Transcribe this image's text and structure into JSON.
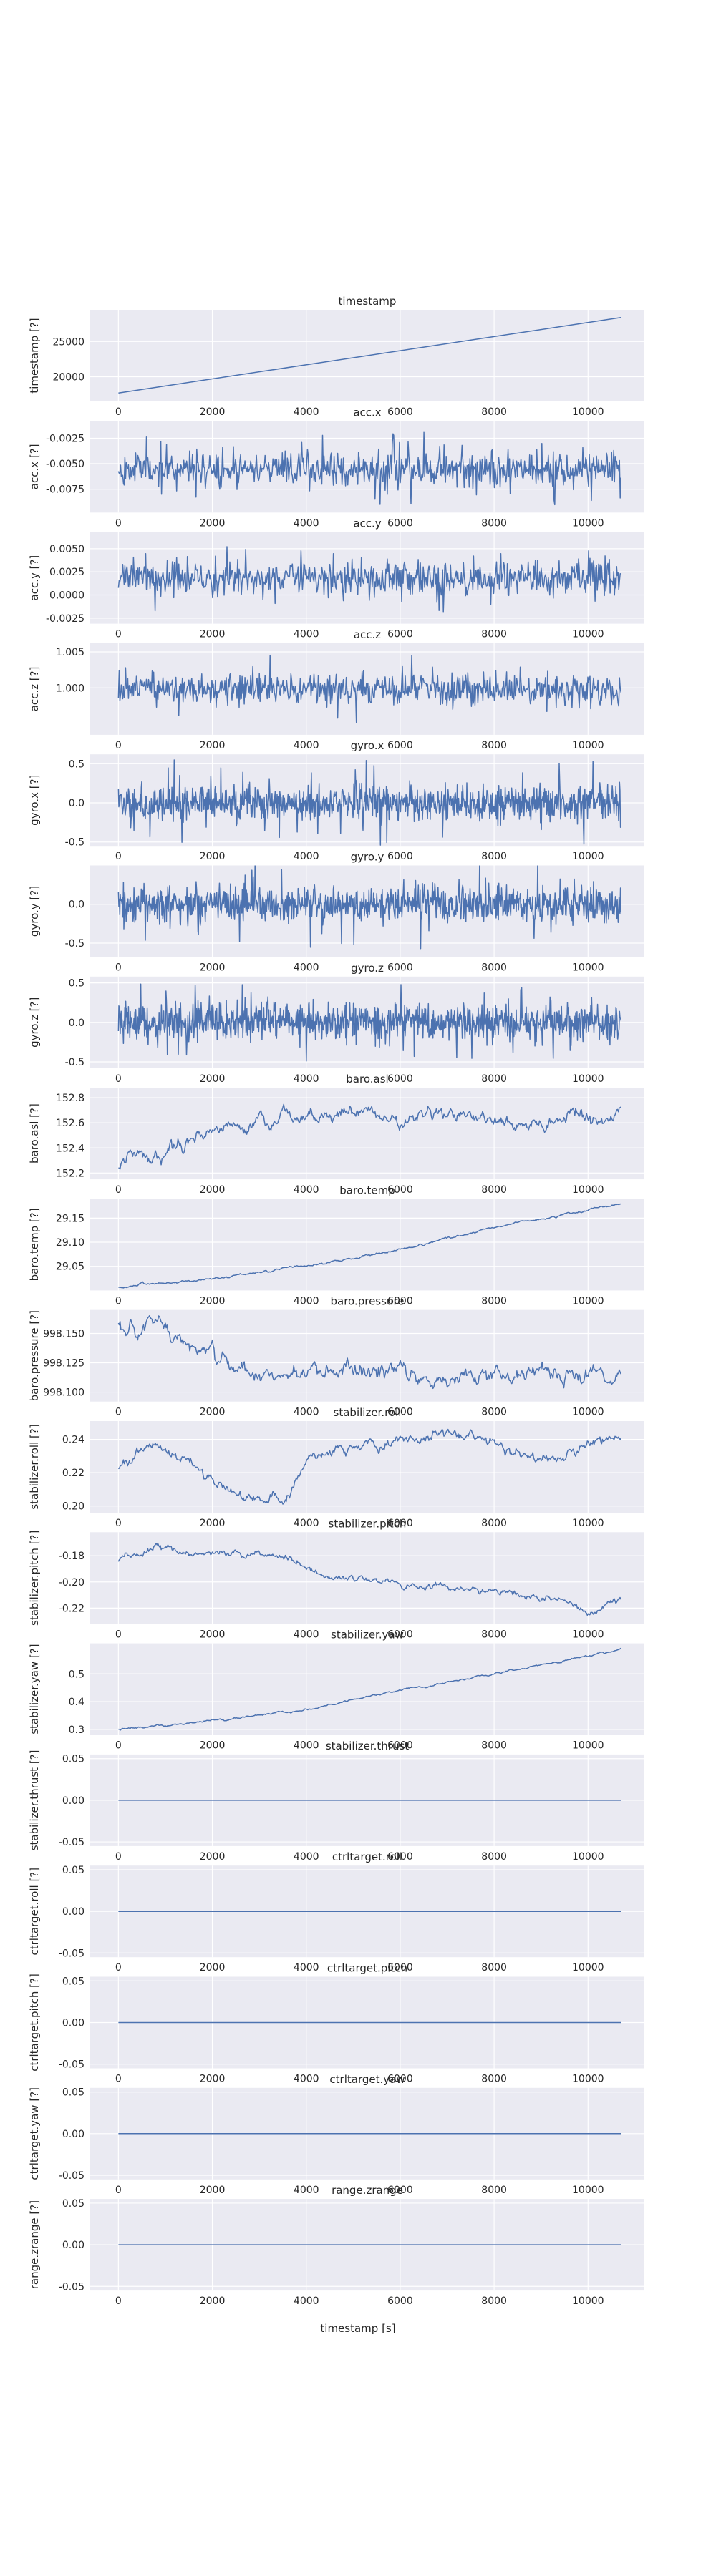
{
  "figure": {
    "shared_xlabel": "timestamp [s]",
    "background": "#ffffff",
    "axes_facecolor": "#eaeaf2",
    "grid_color": "#ffffff",
    "line_color": "#4c72b0",
    "text_color": "#262626"
  },
  "chart_data": [
    {
      "type": "line",
      "title": "timestamp",
      "ylabel": "timestamp [?]",
      "grid": true,
      "xlim": [
        -600,
        11200
      ],
      "x_ticks": [
        0,
        2000,
        4000,
        6000,
        8000,
        10000
      ],
      "ylim": [
        16500,
        29500
      ],
      "y_ticks": [
        20000,
        25000
      ],
      "y_tick_labels": [
        "20000",
        "25000"
      ],
      "series": [
        {
          "x": [
            0,
            10700
          ],
          "y": [
            17700,
            28400
          ]
        }
      ]
    },
    {
      "type": "line",
      "title": "acc.x",
      "ylabel": "acc.x [?]",
      "grid": true,
      "xlim": [
        -600,
        11200
      ],
      "x_ticks": [
        0,
        2000,
        4000,
        6000,
        8000,
        10000
      ],
      "ylim": [
        -0.0098,
        -0.0008
      ],
      "y_ticks": [
        -0.0075,
        -0.005,
        -0.0025
      ],
      "y_tick_labels": [
        "-0.0075",
        "-0.0050",
        "-0.0025"
      ],
      "series": [
        {
          "generated": {
            "kind": "noise",
            "n": 700,
            "mean": -0.0055,
            "amp": 0.0016,
            "spike": 0.0036,
            "seed": 11
          }
        }
      ]
    },
    {
      "type": "line",
      "title": "acc.y",
      "ylabel": "acc.y [?]",
      "grid": true,
      "xlim": [
        -600,
        11200
      ],
      "x_ticks": [
        0,
        2000,
        4000,
        6000,
        8000,
        10000
      ],
      "ylim": [
        -0.0031,
        0.0068
      ],
      "y_ticks": [
        -0.0025,
        0.0,
        0.0025,
        0.005
      ],
      "y_tick_labels": [
        "-0.0025",
        "0.0000",
        "0.0025",
        "0.0050"
      ],
      "series": [
        {
          "generated": {
            "kind": "noise",
            "n": 700,
            "mean": 0.0018,
            "amp": 0.0017,
            "spike": 0.0038,
            "seed": 23
          }
        }
      ]
    },
    {
      "type": "line",
      "title": "acc.z",
      "ylabel": "acc.z [?]",
      "grid": true,
      "xlim": [
        -600,
        11200
      ],
      "x_ticks": [
        0,
        2000,
        4000,
        6000,
        8000,
        10000
      ],
      "ylim": [
        0.9935,
        1.0062
      ],
      "y_ticks": [
        1.0,
        1.005
      ],
      "y_tick_labels": [
        "1.000",
        "1.005"
      ],
      "series": [
        {
          "generated": {
            "kind": "noise",
            "n": 700,
            "mean": 0.9998,
            "amp": 0.0019,
            "spike": 0.0048,
            "seed": 37
          }
        }
      ]
    },
    {
      "type": "line",
      "title": "gyro.x",
      "ylabel": "gyro.x [?]",
      "grid": true,
      "xlim": [
        -600,
        11200
      ],
      "x_ticks": [
        0,
        2000,
        4000,
        6000,
        8000,
        10000
      ],
      "ylim": [
        -0.55,
        0.62
      ],
      "y_ticks": [
        -0.5,
        0.0,
        0.5
      ],
      "y_tick_labels": [
        "-0.5",
        "0.0",
        "0.5"
      ],
      "series": [
        {
          "generated": {
            "kind": "noise",
            "n": 1100,
            "mean": 0.0,
            "amp": 0.2,
            "spike": 0.55,
            "seed": 41
          }
        }
      ]
    },
    {
      "type": "line",
      "title": "gyro.y",
      "ylabel": "gyro.y [?]",
      "grid": true,
      "xlim": [
        -600,
        11200
      ],
      "x_ticks": [
        0,
        2000,
        4000,
        6000,
        8000,
        10000
      ],
      "ylim": [
        -0.68,
        0.5
      ],
      "y_ticks": [
        -0.5,
        0.0
      ],
      "y_tick_labels": [
        "-0.5",
        "0.0"
      ],
      "series": [
        {
          "generated": {
            "kind": "noise",
            "n": 1100,
            "mean": 0.0,
            "amp": 0.2,
            "spike": 0.6,
            "seed": 53
          }
        }
      ]
    },
    {
      "type": "line",
      "title": "gyro.z",
      "ylabel": "gyro.z [?]",
      "grid": true,
      "xlim": [
        -600,
        11200
      ],
      "x_ticks": [
        0,
        2000,
        4000,
        6000,
        8000,
        10000
      ],
      "ylim": [
        -0.58,
        0.58
      ],
      "y_ticks": [
        -0.5,
        0.0,
        0.5
      ],
      "y_tick_labels": [
        "-0.5",
        "0.0",
        "0.5"
      ],
      "series": [
        {
          "generated": {
            "kind": "noise",
            "n": 1100,
            "mean": 0.0,
            "amp": 0.2,
            "spike": 0.5,
            "seed": 67
          }
        }
      ]
    },
    {
      "type": "line",
      "title": "baro.asl",
      "ylabel": "baro.asl [?]",
      "grid": true,
      "xlim": [
        -600,
        11200
      ],
      "x_ticks": [
        0,
        2000,
        4000,
        6000,
        8000,
        10000
      ],
      "ylim": [
        152.15,
        152.88
      ],
      "y_ticks": [
        152.2,
        152.4,
        152.6,
        152.8
      ],
      "y_tick_labels": [
        "152.2",
        "152.4",
        "152.6",
        "152.8"
      ],
      "series": [
        {
          "generated": {
            "kind": "walk",
            "n": 600,
            "seed": 79,
            "jitter": 0.045,
            "anchors": [
              [
                0,
                152.27
              ],
              [
                400,
                152.35
              ],
              [
                700,
                152.28
              ],
              [
                1200,
                152.45
              ],
              [
                2000,
                152.55
              ],
              [
                3000,
                152.6
              ],
              [
                4000,
                152.67
              ],
              [
                5000,
                152.7
              ],
              [
                6000,
                152.62
              ],
              [
                7000,
                152.68
              ],
              [
                8000,
                152.6
              ],
              [
                9000,
                152.56
              ],
              [
                9600,
                152.72
              ],
              [
                10200,
                152.6
              ],
              [
                10700,
                152.66
              ]
            ]
          }
        }
      ]
    },
    {
      "type": "line",
      "title": "baro.temp",
      "ylabel": "baro.temp [?]",
      "grid": true,
      "xlim": [
        -600,
        11200
      ],
      "x_ticks": [
        0,
        2000,
        4000,
        6000,
        8000,
        10000
      ],
      "ylim": [
        29.0,
        29.19
      ],
      "y_ticks": [
        29.05,
        29.1,
        29.15
      ],
      "y_tick_labels": [
        "29.05",
        "29.10",
        "29.15"
      ],
      "series": [
        {
          "generated": {
            "kind": "walk",
            "n": 500,
            "seed": 83,
            "jitter": 0.002,
            "anchors": [
              [
                0,
                29.006
              ],
              [
                2000,
                29.025
              ],
              [
                4000,
                29.05
              ],
              [
                6000,
                29.085
              ],
              [
                8000,
                29.13
              ],
              [
                10700,
                29.18
              ]
            ]
          }
        }
      ]
    },
    {
      "type": "line",
      "title": "baro.pressure",
      "ylabel": "baro.pressure [?]",
      "grid": true,
      "xlim": [
        -600,
        11200
      ],
      "x_ticks": [
        0,
        2000,
        4000,
        6000,
        8000,
        10000
      ],
      "ylim": [
        998.092,
        998.17
      ],
      "y_ticks": [
        998.1,
        998.125,
        998.15
      ],
      "y_tick_labels": [
        "998.100",
        "998.125",
        "998.150"
      ],
      "series": [
        {
          "generated": {
            "kind": "walk",
            "n": 600,
            "seed": 97,
            "jitter": 0.006,
            "anchors": [
              [
                0,
                998.155
              ],
              [
                400,
                998.14
              ],
              [
                600,
                998.16
              ],
              [
                1500,
                998.14
              ],
              [
                2500,
                998.12
              ],
              [
                3500,
                998.115
              ],
              [
                5000,
                998.115
              ],
              [
                6000,
                998.118
              ],
              [
                7000,
                998.11
              ],
              [
                8000,
                998.114
              ],
              [
                9000,
                998.12
              ],
              [
                10000,
                998.115
              ],
              [
                10700,
                998.115
              ]
            ]
          }
        }
      ]
    },
    {
      "type": "line",
      "title": "stabilizer.roll",
      "ylabel": "stabilizer.roll [?]",
      "grid": true,
      "xlim": [
        -600,
        11200
      ],
      "x_ticks": [
        0,
        2000,
        4000,
        6000,
        8000,
        10000
      ],
      "ylim": [
        0.196,
        0.251
      ],
      "y_ticks": [
        0.2,
        0.22,
        0.24
      ],
      "y_tick_labels": [
        "0.20",
        "0.22",
        "0.24"
      ],
      "series": [
        {
          "generated": {
            "kind": "walk",
            "n": 600,
            "seed": 101,
            "jitter": 0.0025,
            "anchors": [
              [
                0,
                0.224
              ],
              [
                800,
                0.236
              ],
              [
                1500,
                0.228
              ],
              [
                2000,
                0.215
              ],
              [
                2800,
                0.204
              ],
              [
                3500,
                0.203
              ],
              [
                4000,
                0.226
              ],
              [
                4700,
                0.235
              ],
              [
                5500,
                0.238
              ],
              [
                6500,
                0.241
              ],
              [
                7500,
                0.244
              ],
              [
                8500,
                0.232
              ],
              [
                9500,
                0.228
              ],
              [
                10200,
                0.24
              ],
              [
                10700,
                0.24
              ]
            ]
          }
        }
      ]
    },
    {
      "type": "line",
      "title": "stabilizer.pitch",
      "ylabel": "stabilizer.pitch [?]",
      "grid": true,
      "xlim": [
        -600,
        11200
      ],
      "x_ticks": [
        0,
        2000,
        4000,
        6000,
        8000,
        10000
      ],
      "ylim": [
        -0.232,
        -0.162
      ],
      "y_ticks": [
        -0.22,
        -0.2,
        -0.18
      ],
      "y_tick_labels": [
        "-0.22",
        "-0.20",
        "-0.18"
      ],
      "series": [
        {
          "generated": {
            "kind": "walk",
            "n": 600,
            "seed": 113,
            "jitter": 0.002,
            "anchors": [
              [
                0,
                -0.183
              ],
              [
                500,
                -0.181
              ],
              [
                900,
                -0.172
              ],
              [
                1500,
                -0.178
              ],
              [
                2500,
                -0.178
              ],
              [
                3500,
                -0.18
              ],
              [
                4500,
                -0.197
              ],
              [
                5500,
                -0.198
              ],
              [
                6500,
                -0.203
              ],
              [
                7500,
                -0.205
              ],
              [
                8500,
                -0.21
              ],
              [
                9500,
                -0.213
              ],
              [
                10000,
                -0.224
              ],
              [
                10700,
                -0.213
              ]
            ]
          }
        }
      ]
    },
    {
      "type": "line",
      "title": "stabilizer.yaw",
      "ylabel": "stabilizer.yaw [?]",
      "grid": true,
      "xlim": [
        -600,
        11200
      ],
      "x_ticks": [
        0,
        2000,
        4000,
        6000,
        8000,
        10000
      ],
      "ylim": [
        0.28,
        0.61
      ],
      "y_ticks": [
        0.3,
        0.4,
        0.5
      ],
      "y_tick_labels": [
        "0.3",
        "0.4",
        "0.5"
      ],
      "series": [
        {
          "generated": {
            "kind": "walk",
            "n": 500,
            "seed": 127,
            "jitter": 0.003,
            "anchors": [
              [
                0,
                0.3
              ],
              [
                2000,
                0.33
              ],
              [
                4000,
                0.37
              ],
              [
                6000,
                0.44
              ],
              [
                8000,
                0.5
              ],
              [
                10700,
                0.59
              ]
            ]
          }
        }
      ]
    },
    {
      "type": "line",
      "title": "stabilizer.thrust",
      "ylabel": "stabilizer.thrust [?]",
      "grid": true,
      "xlim": [
        -600,
        11200
      ],
      "x_ticks": [
        0,
        2000,
        4000,
        6000,
        8000,
        10000
      ],
      "ylim": [
        -0.055,
        0.055
      ],
      "y_ticks": [
        -0.05,
        0.0,
        0.05
      ],
      "y_tick_labels": [
        "-0.05",
        "0.00",
        "0.05"
      ],
      "series": [
        {
          "x": [
            0,
            10700
          ],
          "y": [
            0,
            0
          ]
        }
      ]
    },
    {
      "type": "line",
      "title": "ctrltarget.roll",
      "ylabel": "ctrltarget.roll [?]",
      "grid": true,
      "xlim": [
        -600,
        11200
      ],
      "x_ticks": [
        0,
        2000,
        4000,
        6000,
        8000,
        10000
      ],
      "ylim": [
        -0.055,
        0.055
      ],
      "y_ticks": [
        -0.05,
        0.0,
        0.05
      ],
      "y_tick_labels": [
        "-0.05",
        "0.00",
        "0.05"
      ],
      "series": [
        {
          "x": [
            0,
            10700
          ],
          "y": [
            0,
            0
          ]
        }
      ]
    },
    {
      "type": "line",
      "title": "ctrltarget.pitch",
      "ylabel": "ctrltarget.pitch [?]",
      "grid": true,
      "xlim": [
        -600,
        11200
      ],
      "x_ticks": [
        0,
        2000,
        4000,
        6000,
        8000,
        10000
      ],
      "ylim": [
        -0.055,
        0.055
      ],
      "y_ticks": [
        -0.05,
        0.0,
        0.05
      ],
      "y_tick_labels": [
        "-0.05",
        "0.00",
        "0.05"
      ],
      "series": [
        {
          "x": [
            0,
            10700
          ],
          "y": [
            0,
            0
          ]
        }
      ]
    },
    {
      "type": "line",
      "title": "ctrltarget.yaw",
      "ylabel": "ctrltarget.yaw [?]",
      "grid": true,
      "xlim": [
        -600,
        11200
      ],
      "x_ticks": [
        0,
        2000,
        4000,
        6000,
        8000,
        10000
      ],
      "ylim": [
        -0.055,
        0.055
      ],
      "y_ticks": [
        -0.05,
        0.0,
        0.05
      ],
      "y_tick_labels": [
        "-0.05",
        "0.00",
        "0.05"
      ],
      "series": [
        {
          "x": [
            0,
            10700
          ],
          "y": [
            0,
            0
          ]
        }
      ]
    },
    {
      "type": "line",
      "title": "range.zrange",
      "ylabel": "range.zrange [?]",
      "grid": true,
      "xlim": [
        -600,
        11200
      ],
      "x_ticks": [
        0,
        2000,
        4000,
        6000,
        8000,
        10000
      ],
      "ylim": [
        -0.055,
        0.055
      ],
      "y_ticks": [
        -0.05,
        0.0,
        0.05
      ],
      "y_tick_labels": [
        "-0.05",
        "0.00",
        "0.05"
      ],
      "series": [
        {
          "x": [
            0,
            10700
          ],
          "y": [
            0,
            0
          ]
        }
      ]
    }
  ]
}
